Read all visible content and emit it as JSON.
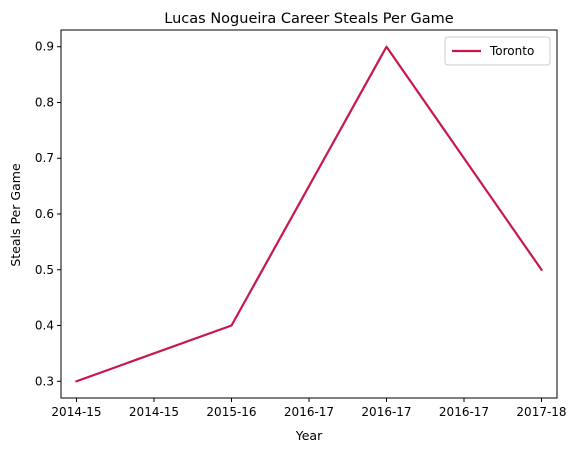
{
  "chart_data": {
    "type": "line",
    "title": "Lucas Nogueira Career Steals Per Game",
    "xlabel": "Year",
    "ylabel": "Steals Per Game",
    "x_tick_labels": [
      "2014-15",
      "2014-15",
      "2015-16",
      "2016-17",
      "2016-17",
      "2016-17",
      "2017-18"
    ],
    "y_ticks": [
      0.3,
      0.4,
      0.5,
      0.6,
      0.7,
      0.8,
      0.9
    ],
    "y_tick_labels": [
      "0.3",
      "0.4",
      "0.5",
      "0.6",
      "0.7",
      "0.8",
      "0.9"
    ],
    "xlim": [
      2014.9,
      2018.1
    ],
    "ylim": [
      0.27,
      0.93
    ],
    "series": [
      {
        "name": "Toronto",
        "color": "#c8174a",
        "points": [
          {
            "x": 2015,
            "y": 0.3
          },
          {
            "x": 2016,
            "y": 0.4
          },
          {
            "x": 2017,
            "y": 0.9
          },
          {
            "x": 2018,
            "y": 0.5
          }
        ]
      }
    ],
    "x_tick_positions": [
      2015,
      2015.5,
      2016,
      2016.5,
      2017,
      2017.5,
      2018
    ],
    "grid": false,
    "legend_position": "upper right"
  }
}
